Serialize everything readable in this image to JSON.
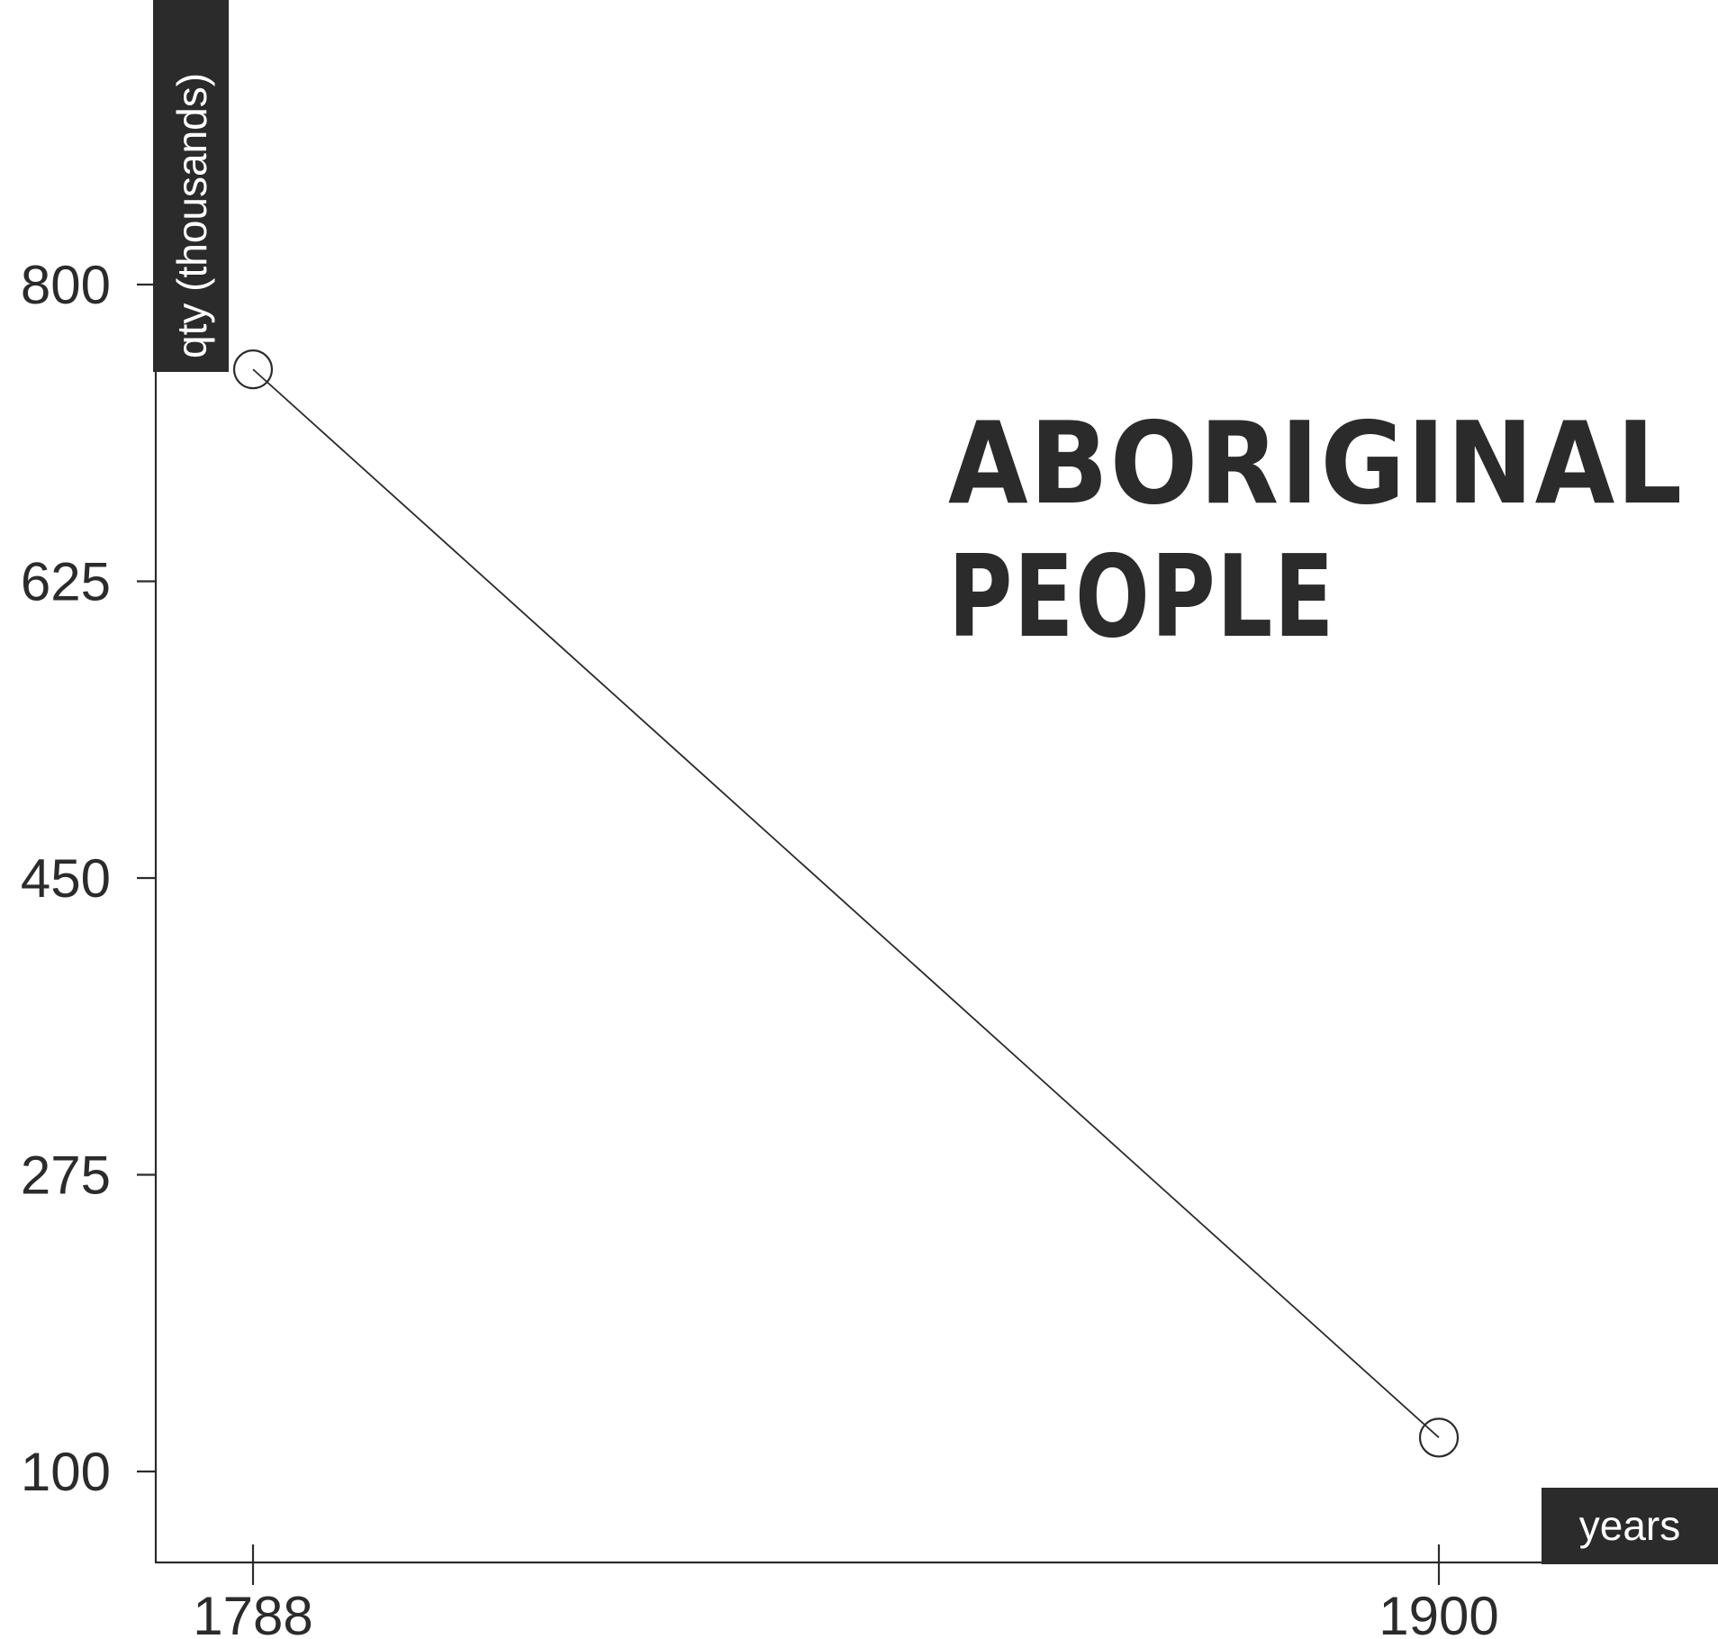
{
  "chart_data": {
    "type": "line",
    "title": [
      "ABORIGINAL",
      "PEOPLE"
    ],
    "xlabel": "years",
    "ylabel": "qty (thousands)",
    "x": [
      1788,
      1900
    ],
    "xticks": [
      "1788",
      "1900"
    ],
    "yticks": [
      100,
      275,
      450,
      625,
      800
    ],
    "ylim": [
      100,
      800
    ],
    "series": [
      {
        "values": [
          750,
          120
        ]
      }
    ],
    "grid": false,
    "colors": {
      "ink": "#2b2b2b",
      "background": "#ffffff"
    }
  }
}
